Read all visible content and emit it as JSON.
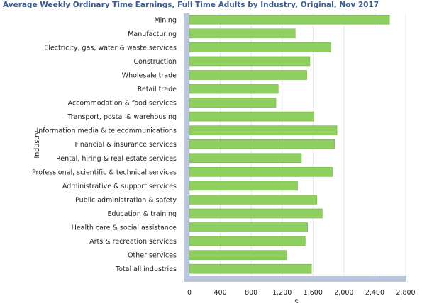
{
  "chart_data": {
    "type": "bar",
    "orientation": "horizontal",
    "title": "Average Weekly Ordinary Time Earnings, Full Time Adults by Industry, Original, Nov 2017",
    "ylabel": "Industry",
    "xlabel": "$",
    "xlim": [
      0,
      2800
    ],
    "xticks": [
      0,
      400,
      800,
      1200,
      1600,
      2000,
      2400,
      2800
    ],
    "xtick_labels": [
      "0",
      "400",
      "800",
      "1,200",
      "1,600",
      "2,000",
      "2,400",
      "2,800"
    ],
    "grid": true,
    "categories": [
      "Mining",
      "Manufacturing",
      "Electricity, gas, water & waste services",
      "Construction",
      "Wholesale trade",
      "Retail trade",
      "Accommodation & food services",
      "Transport, postal & warehousing",
      "Information media & telecommunications",
      "Financial & insurance services",
      "Rental, hiring & real estate services",
      "Professional, scientific & technical services",
      "Administrative & support services",
      "Public administration & safety",
      "Education & training",
      "Health care & social assistance",
      "Arts & recreation services",
      "Other services",
      "Total all industries"
    ],
    "values": [
      2590,
      1370,
      1830,
      1560,
      1520,
      1150,
      1120,
      1610,
      1910,
      1880,
      1450,
      1850,
      1400,
      1650,
      1720,
      1530,
      1500,
      1260,
      1580
    ],
    "colors": {
      "bar": "#8fcf5f",
      "bar_edge": "#74b446",
      "axis_bar": "#b9c6db",
      "grid": "#e2e6ee",
      "title": "#3a5a8c"
    }
  }
}
